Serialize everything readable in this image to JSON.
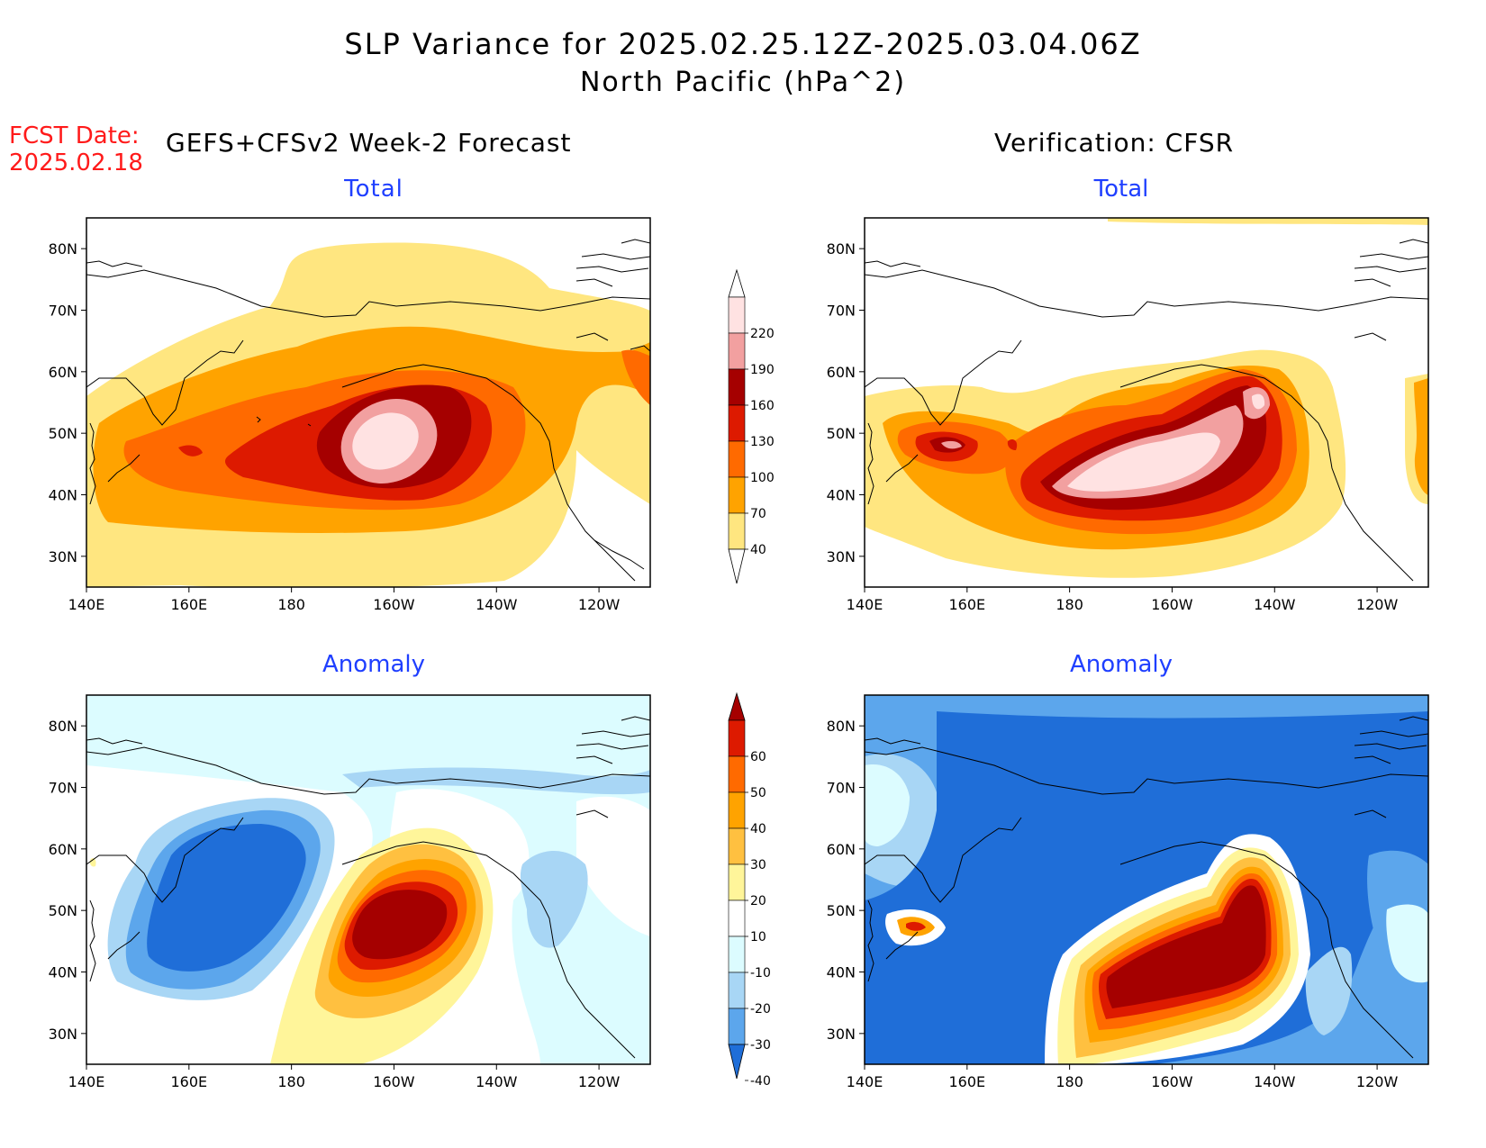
{
  "title": {
    "line1": "SLP Variance for 2025.02.25.12Z-2025.03.04.06Z",
    "line2": "North Pacific (hPa^2)"
  },
  "forecast": {
    "date_label": "FCST Date:",
    "date_value": "2025.02.18"
  },
  "headers": {
    "left": "GEFS+CFSv2 Week-2 Forecast",
    "right": "Verification: CFSR"
  },
  "panels": {
    "top_left": "Total",
    "top_right": "Total",
    "bottom_left": "Anomaly",
    "bottom_right": "Anomaly"
  },
  "axes": {
    "lat_labels": [
      "80N",
      "70N",
      "60N",
      "50N",
      "40N",
      "30N"
    ],
    "lon_labels": [
      "140E",
      "160E",
      "180",
      "160W",
      "140W",
      "120W"
    ]
  },
  "total_colorbar": {
    "labels": [
      "220",
      "190",
      "160",
      "130",
      "100",
      "70",
      "40"
    ],
    "colors": [
      "#ffe2e2",
      "#f2a0a0",
      "#a50000",
      "#dd1a00",
      "#ff6a00",
      "#ffa300",
      "#ffe680"
    ]
  },
  "anomaly_colorbar": {
    "labels": [
      "60",
      "50",
      "40",
      "30",
      "20",
      "10",
      "-10",
      "-20",
      "-30",
      "-40"
    ],
    "colors": [
      "#a50000",
      "#dd1a00",
      "#ff6a00",
      "#ffa300",
      "#ffc040",
      "#fff59a",
      "#ffffff",
      "#dcfcff",
      "#a8d6f5",
      "#5ca6ec",
      "#1f6ed8"
    ]
  },
  "colors": {
    "fcst_text": "#ff1a1a",
    "panel_title": "#1f3fff"
  }
}
